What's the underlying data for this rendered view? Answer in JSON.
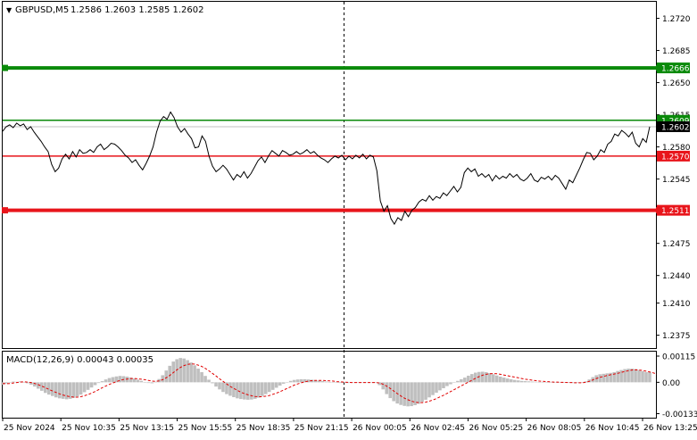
{
  "header": {
    "menu_glyph": "▼",
    "symbol": "GBPUSD,M5",
    "ohlc": "1.2586 1.2603 1.2585 1.2602"
  },
  "macd": {
    "label": "MACD(12,26,9) 0.00043 0.00035",
    "hist_color": "#bfbfbf",
    "signal_color": "#e00000"
  },
  "colors": {
    "price_line": "#000000",
    "green_level": "#0a8a0a",
    "red_level": "#e8151b",
    "grid": "#000000",
    "current_price_tag": "#000000"
  },
  "chart_data": [
    {
      "type": "line",
      "series": [
        {
          "values": [
            1.2597,
            1.2602,
            1.2604,
            1.2601,
            1.2606,
            1.2603,
            1.2605,
            1.2599,
            1.2602,
            1.2596,
            1.2591,
            1.2586,
            1.258,
            1.2575,
            1.2561,
            1.2553,
            1.2557,
            1.2567,
            1.2572,
            1.2567,
            1.2575,
            1.2569,
            1.2577,
            1.2573,
            1.2574,
            1.2577,
            1.2574,
            1.258,
            1.2583,
            1.2577,
            1.258,
            1.2584,
            1.2583,
            1.258,
            1.2576,
            1.2571,
            1.2568,
            1.2563,
            1.2566,
            1.256,
            1.2555,
            1.2562,
            1.257,
            1.258,
            1.2596,
            1.2608,
            1.2613,
            1.261,
            1.2618,
            1.2612,
            1.2602,
            1.2596,
            1.26,
            1.2594,
            1.2589,
            1.2579,
            1.258,
            1.2592,
            1.2586,
            1.257,
            1.2559,
            1.2553,
            1.2556,
            1.256,
            1.2556,
            1.255,
            1.2544,
            1.255,
            1.2547,
            1.2553,
            1.2546,
            1.2551,
            1.2558,
            1.2565,
            1.2569,
            1.2563,
            1.257,
            1.2576,
            1.2573,
            1.257,
            1.2576,
            1.2574,
            1.2571,
            1.2572,
            1.2575,
            1.2572,
            1.2574,
            1.2577,
            1.2573,
            1.2575,
            1.2571,
            1.2568,
            1.2566,
            1.2563,
            1.2567,
            1.257,
            1.2568,
            1.2571,
            1.2566,
            1.257,
            1.2567,
            1.2571,
            1.2568,
            1.2572,
            1.2567,
            1.2571,
            1.2569,
            1.2554,
            1.2521,
            1.251,
            1.2516,
            1.2502,
            1.2496,
            1.2503,
            1.25,
            1.251,
            1.2504,
            1.2511,
            1.2514,
            1.252,
            1.2523,
            1.2521,
            1.2527,
            1.2522,
            1.2526,
            1.2524,
            1.253,
            1.2527,
            1.2532,
            1.2537,
            1.2531,
            1.2536,
            1.2552,
            1.2557,
            1.2553,
            1.2556,
            1.2548,
            1.2551,
            1.2547,
            1.255,
            1.2543,
            1.2549,
            1.2545,
            1.2548,
            1.2546,
            1.2551,
            1.2547,
            1.255,
            1.2545,
            1.2543,
            1.2546,
            1.2551,
            1.2544,
            1.2542,
            1.2547,
            1.2545,
            1.2548,
            1.2544,
            1.2549,
            1.2546,
            1.254,
            1.2534,
            1.2544,
            1.2541,
            1.2549,
            1.2557,
            1.2566,
            1.2574,
            1.2573,
            1.2566,
            1.257,
            1.2577,
            1.2574,
            1.2583,
            1.2586,
            1.2594,
            1.2592,
            1.2598,
            1.2595,
            1.2591,
            1.2596,
            1.2584,
            1.258,
            1.2589,
            1.2585,
            1.2602
          ]
        }
      ],
      "ylim": [
        1.2361,
        1.2738
      ],
      "y_ticks": [
        "1.2720",
        "1.2685",
        "1.2650",
        "1.2615",
        "1.2580",
        "1.2545",
        "1.2510",
        "1.2475",
        "1.2440",
        "1.2410",
        "1.2375"
      ],
      "levels": [
        {
          "value": 1.2666,
          "label": "1.2666",
          "color": "#0a8a0a",
          "width": 4
        },
        {
          "value": 1.2609,
          "label": "1.2609",
          "color": "#0a8a0a",
          "width": 1.5
        },
        {
          "value": 1.257,
          "label": "1.2570",
          "color": "#e8151b",
          "width": 1.5
        },
        {
          "value": 1.2511,
          "label": "1.2511",
          "color": "#e8151b",
          "width": 4
        }
      ],
      "current_price": {
        "value": 1.2602,
        "label": "1.2602"
      },
      "x_labels": [
        "25 Nov 2024",
        "25 Nov 10:35",
        "25 Nov 13:15",
        "25 Nov 15:55",
        "25 Nov 18:35",
        "25 Nov 21:15",
        "26 Nov 00:05",
        "26 Nov 02:45",
        "26 Nov 05:25",
        "26 Nov 08:05",
        "26 Nov 10:45",
        "26 Nov 13:25"
      ],
      "grid": false
    },
    {
      "type": "bar",
      "title": "MACD(12,26,9) 0.00043 0.00035",
      "series": [
        {
          "values": [
            -0.0001,
            -5e-05,
            0.0,
            3e-05,
            2e-05,
            4e-05,
            1e-05,
            -4e-05,
            -0.0001,
            -0.00018,
            -0.00027,
            -0.00036,
            -0.00045,
            -0.00052,
            -0.00058,
            -0.00064,
            -0.00068,
            -0.0007,
            -0.00072,
            -0.0007,
            -0.00066,
            -0.0006,
            -0.00052,
            -0.00042,
            -0.00032,
            -0.00022,
            -0.00012,
            -3e-05,
            5e-05,
            0.00012,
            0.00018,
            0.00022,
            0.00025,
            0.00027,
            0.00026,
            0.00024,
            0.0002,
            0.00016,
            0.00011,
            6e-05,
            1e-05,
            -3e-05,
            -4e-05,
            2e-05,
            0.00014,
            0.0003,
            0.0005,
            0.0007,
            0.00088,
            0.00098,
            0.00103,
            0.00101,
            0.00094,
            0.00084,
            0.00072,
            0.00058,
            0.00043,
            0.00027,
            0.00011,
            -4e-05,
            -0.00018,
            -0.0003,
            -0.00041,
            -0.0005,
            -0.00057,
            -0.00063,
            -0.00068,
            -0.00071,
            -0.00073,
            -0.00074,
            -0.00073,
            -0.0007,
            -0.00065,
            -0.00058,
            -0.0005,
            -0.00041,
            -0.00032,
            -0.00023,
            -0.00014,
            -6e-05,
            1e-05,
            6e-05,
            0.0001,
            0.00012,
            0.00013,
            0.00013,
            0.00012,
            0.00011,
            9e-05,
            7e-05,
            5e-05,
            3e-05,
            1e-05,
            -1e-05,
            -2e-05,
            -3e-05,
            -3e-05,
            -3e-05,
            -2e-05,
            -2e-05,
            -1e-05,
            -1e-05,
            -1e-05,
            0.0,
            0.0,
            -2e-05,
            -0.00012,
            -0.0003,
            -0.0005,
            -0.00067,
            -0.0008,
            -0.0009,
            -0.00096,
            -0.001,
            -0.00102,
            -0.00101,
            -0.00097,
            -0.00091,
            -0.00083,
            -0.00074,
            -0.00064,
            -0.00054,
            -0.00044,
            -0.00034,
            -0.00025,
            -0.00016,
            -8e-05,
            -1e-05,
            6e-05,
            0.00013,
            0.0002,
            0.00028,
            0.00035,
            0.00041,
            0.00044,
            0.00045,
            0.00043,
            0.00039,
            0.00034,
            0.00029,
            0.00024,
            0.0002,
            0.00016,
            0.00013,
            0.0001,
            8e-05,
            6e-05,
            5e-05,
            4e-05,
            3e-05,
            2e-05,
            1e-05,
            1e-05,
            0.0,
            0.0,
            0.0,
            0.0,
            0.0,
            -1e-05,
            -2e-05,
            -3e-05,
            -3e-05,
            -2e-05,
            -1e-05,
            4e-05,
            0.00012,
            0.00022,
            0.0003,
            0.00034,
            0.00036,
            0.00038,
            0.0004,
            0.00043,
            0.00048,
            0.00052,
            0.00056,
            0.00058,
            0.00058,
            0.00056,
            0.00052,
            0.00047,
            0.00043,
            0.00043
          ]
        },
        {
          "values": [
            -5e-05,
            -6e-05,
            -5e-05,
            -3e-05,
            -1e-05,
            1e-05,
            2e-05,
            1e-05,
            -1e-05,
            -5e-05,
            -0.0001,
            -0.00016,
            -0.00023,
            -0.0003,
            -0.00037,
            -0.00043,
            -0.00049,
            -0.00054,
            -0.00058,
            -0.00061,
            -0.00063,
            -0.00063,
            -0.00061,
            -0.00057,
            -0.00052,
            -0.00046,
            -0.00039,
            -0.00031,
            -0.00023,
            -0.00016,
            -9e-05,
            -3e-05,
            3e-05,
            8e-05,
            0.00012,
            0.00014,
            0.00016,
            0.00016,
            0.00015,
            0.00013,
            0.00011,
            8e-05,
            5e-05,
            4e-05,
            6e-05,
            0.00011,
            0.00019,
            0.00029,
            0.00041,
            0.00053,
            0.00063,
            0.00071,
            0.00076,
            0.00078,
            0.00077,
            0.00073,
            0.00067,
            0.00059,
            0.00049,
            0.00038,
            0.00027,
            0.00015,
            4e-05,
            -7e-05,
            -0.00017,
            -0.00026,
            -0.00034,
            -0.00042,
            -0.00048,
            -0.00053,
            -0.00057,
            -0.0006,
            -0.00061,
            -0.00061,
            -0.00059,
            -0.00056,
            -0.00051,
            -0.00046,
            -0.0004,
            -0.00033,
            -0.00026,
            -0.00019,
            -0.00012,
            -7e-05,
            -2e-05,
            2e-05,
            5e-05,
            7e-05,
            8e-05,
            8e-05,
            8e-05,
            7e-05,
            6e-05,
            5e-05,
            3e-05,
            2e-05,
            1e-05,
            0.0,
            -1e-05,
            -1e-05,
            -1e-05,
            -1e-05,
            -1e-05,
            -1e-05,
            -1e-05,
            -1e-05,
            -3e-05,
            -8e-05,
            -0.00016,
            -0.00026,
            -0.00037,
            -0.00048,
            -0.00058,
            -0.00067,
            -0.00074,
            -0.0008,
            -0.00084,
            -0.00086,
            -0.00086,
            -0.00084,
            -0.0008,
            -0.00075,
            -0.00069,
            -0.00062,
            -0.00055,
            -0.00047,
            -0.00039,
            -0.00031,
            -0.00023,
            -0.00015,
            -7e-05,
            1e-05,
            9e-05,
            0.00017,
            0.00024,
            0.0003,
            0.00034,
            0.00036,
            0.00037,
            0.00036,
            0.00034,
            0.00031,
            0.00028,
            0.00025,
            0.00022,
            0.00019,
            0.00016,
            0.00013,
            0.00011,
            9e-05,
            7e-05,
            5e-05,
            4e-05,
            3e-05,
            2e-05,
            1e-05,
            1e-05,
            0.0,
            0.0,
            -1e-05,
            -1e-05,
            -2e-05,
            -2e-05,
            -2e-05,
            0.0,
            4e-05,
            0.0001,
            0.00016,
            0.00021,
            0.00025,
            0.00029,
            0.00032,
            0.00035,
            0.00038,
            0.00042,
            0.00046,
            0.00049,
            0.00052,
            0.00053,
            0.00052,
            0.0005,
            0.00047,
            0.00044,
            0.0004,
            0.00035
          ]
        }
      ],
      "ylim": [
        -0.0015,
        0.0013
      ],
      "y_ticks": [
        "0.00115",
        "0.00",
        "-0.00133"
      ]
    }
  ]
}
